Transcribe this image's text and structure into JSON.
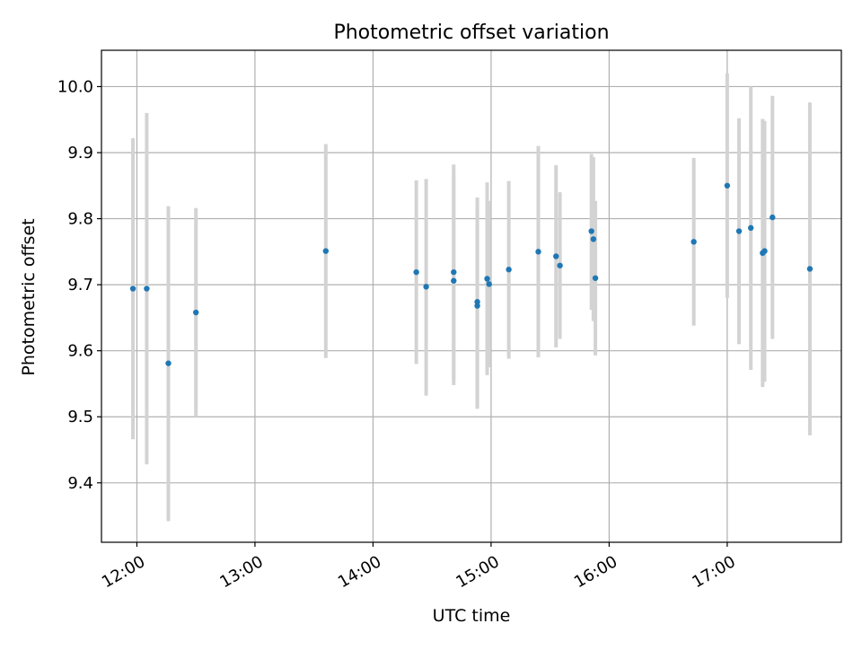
{
  "chart_data": {
    "type": "scatter",
    "title": "Photometric offset variation",
    "xlabel": "UTC time",
    "ylabel": "Photometric offset",
    "xlim": [
      "11:42",
      "17:58"
    ],
    "ylim": [
      9.31,
      10.055
    ],
    "x_ticks": [
      "12:00",
      "13:00",
      "14:00",
      "15:00",
      "16:00",
      "17:00"
    ],
    "y_ticks": [
      "9.4",
      "9.5",
      "9.6",
      "9.7",
      "9.8",
      "9.9",
      "10.0"
    ],
    "grid": true,
    "errorbar_color": "#d3d3d3",
    "marker_color": "#1f77b4",
    "points": [
      {
        "time": "11:58",
        "y": 9.694,
        "lo": 9.466,
        "hi": 9.922
      },
      {
        "time": "12:05",
        "y": 9.694,
        "lo": 9.428,
        "hi": 9.96
      },
      {
        "time": "12:16",
        "y": 9.581,
        "lo": 9.342,
        "hi": 9.819
      },
      {
        "time": "12:30",
        "y": 9.658,
        "lo": 9.5,
        "hi": 9.816
      },
      {
        "time": "13:36",
        "y": 9.751,
        "lo": 9.589,
        "hi": 9.913
      },
      {
        "time": "14:22",
        "y": 9.719,
        "lo": 9.58,
        "hi": 9.858
      },
      {
        "time": "14:27",
        "y": 9.697,
        "lo": 9.532,
        "hi": 9.86
      },
      {
        "time": "14:41",
        "y": 9.719,
        "lo": 9.557,
        "hi": 9.882
      },
      {
        "time": "14:41",
        "y": 9.706,
        "lo": 9.548,
        "hi": 9.864
      },
      {
        "time": "14:53",
        "y": 9.674,
        "lo": 9.513,
        "hi": 9.832
      },
      {
        "time": "14:53",
        "y": 9.668,
        "lo": 9.512,
        "hi": 9.824
      },
      {
        "time": "14:58",
        "y": 9.709,
        "lo": 9.563,
        "hi": 9.855
      },
      {
        "time": "14:59",
        "y": 9.701,
        "lo": 9.575,
        "hi": 9.827
      },
      {
        "time": "15:09",
        "y": 9.723,
        "lo": 9.588,
        "hi": 9.857
      },
      {
        "time": "15:24",
        "y": 9.75,
        "lo": 9.59,
        "hi": 9.91
      },
      {
        "time": "15:33",
        "y": 9.743,
        "lo": 9.605,
        "hi": 9.881
      },
      {
        "time": "15:35",
        "y": 9.729,
        "lo": 9.618,
        "hi": 9.84
      },
      {
        "time": "15:51",
        "y": 9.781,
        "lo": 9.662,
        "hi": 9.898
      },
      {
        "time": "15:52",
        "y": 9.769,
        "lo": 9.645,
        "hi": 9.893
      },
      {
        "time": "15:53",
        "y": 9.71,
        "lo": 9.593,
        "hi": 9.827
      },
      {
        "time": "16:43",
        "y": 9.765,
        "lo": 9.638,
        "hi": 9.892
      },
      {
        "time": "17:00",
        "y": 9.85,
        "lo": 9.68,
        "hi": 10.02
      },
      {
        "time": "17:06",
        "y": 9.781,
        "lo": 9.61,
        "hi": 9.952
      },
      {
        "time": "17:12",
        "y": 9.786,
        "lo": 9.571,
        "hi": 10.0
      },
      {
        "time": "17:18",
        "y": 9.748,
        "lo": 9.545,
        "hi": 9.951
      },
      {
        "time": "17:19",
        "y": 9.751,
        "lo": 9.553,
        "hi": 9.948
      },
      {
        "time": "17:23",
        "y": 9.802,
        "lo": 9.618,
        "hi": 9.986
      },
      {
        "time": "17:42",
        "y": 9.724,
        "lo": 9.472,
        "hi": 9.976
      }
    ]
  }
}
